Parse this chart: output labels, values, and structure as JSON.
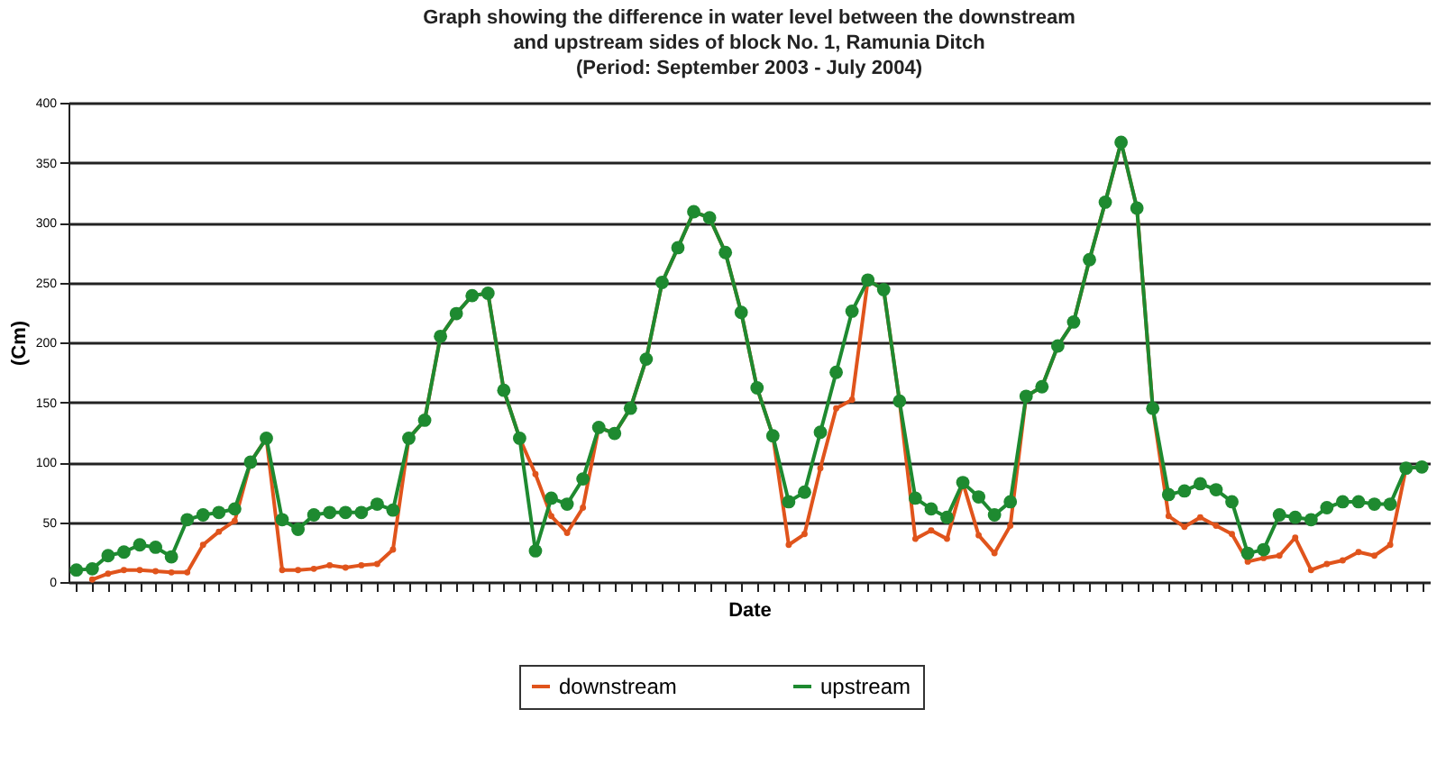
{
  "chart_data": {
    "type": "line",
    "title": "Graph showing the difference in water level between the downstream\nand upstream sides of block No. 1, Ramunia Ditch\n(Period: September 2003 - July 2004)",
    "xlabel": "Date",
    "ylabel": "(Cm)",
    "categories": [
      null,
      null,
      null,
      null,
      null,
      null,
      null,
      null,
      null,
      null,
      null,
      null,
      null,
      null,
      null,
      null,
      null,
      null,
      null,
      null,
      null,
      null,
      null,
      null,
      null,
      null,
      null,
      null,
      null,
      null,
      null,
      null,
      null,
      null,
      null,
      null,
      null,
      null,
      null,
      null,
      null,
      null,
      null,
      null,
      null,
      null,
      null,
      null,
      null,
      null,
      null,
      null,
      null,
      null,
      null,
      null,
      null,
      null,
      null,
      null,
      null,
      null,
      null,
      null,
      null,
      null,
      null,
      null,
      null,
      null,
      null,
      null,
      null,
      null,
      null,
      null,
      null,
      null,
      null,
      null,
      null,
      null,
      null,
      null,
      null,
      null
    ],
    "series": [
      {
        "name": "downstream",
        "color": "#e0541c",
        "values": [
          null,
          2,
          7,
          10,
          10,
          9,
          8,
          8,
          31,
          42,
          51,
          100,
          120,
          10,
          10,
          11,
          14,
          12,
          14,
          15,
          27,
          120,
          135,
          205,
          224,
          239,
          241,
          160,
          120,
          90,
          55,
          41,
          62,
          129,
          124,
          145,
          186,
          250,
          279,
          309,
          304,
          275,
          225,
          162,
          122,
          31,
          40,
          95,
          145,
          152,
          252,
          244,
          151,
          36,
          43,
          36,
          83,
          39,
          24,
          47,
          155,
          163,
          197,
          217,
          269,
          317,
          367,
          312,
          145,
          55,
          46,
          54,
          47,
          40,
          17,
          20,
          22,
          37,
          10,
          15,
          18,
          25,
          22,
          31,
          95,
          96
        ]
      },
      {
        "name": "upstream",
        "color": "#1e8a30",
        "values": [
          10,
          11,
          22,
          25,
          31,
          29,
          21,
          52,
          56,
          58,
          61,
          100,
          120,
          52,
          44,
          56,
          58,
          58,
          58,
          65,
          60,
          120,
          135,
          205,
          224,
          239,
          241,
          160,
          120,
          26,
          70,
          65,
          86,
          129,
          124,
          145,
          186,
          250,
          279,
          309,
          304,
          275,
          225,
          162,
          122,
          67,
          75,
          125,
          175,
          226,
          252,
          244,
          151,
          70,
          61,
          54,
          83,
          71,
          56,
          67,
          155,
          163,
          197,
          217,
          269,
          317,
          367,
          312,
          145,
          73,
          76,
          82,
          77,
          67,
          24,
          27,
          56,
          54,
          52,
          62,
          67,
          67,
          65,
          65,
          95,
          96
        ]
      }
    ],
    "ylim": [
      0,
      400
    ],
    "yticks": [
      0,
      50,
      100,
      150,
      200,
      250,
      300,
      350,
      400
    ],
    "grid": "y",
    "legend": "bottom",
    "marker": "circle",
    "tick_labels": "y"
  }
}
